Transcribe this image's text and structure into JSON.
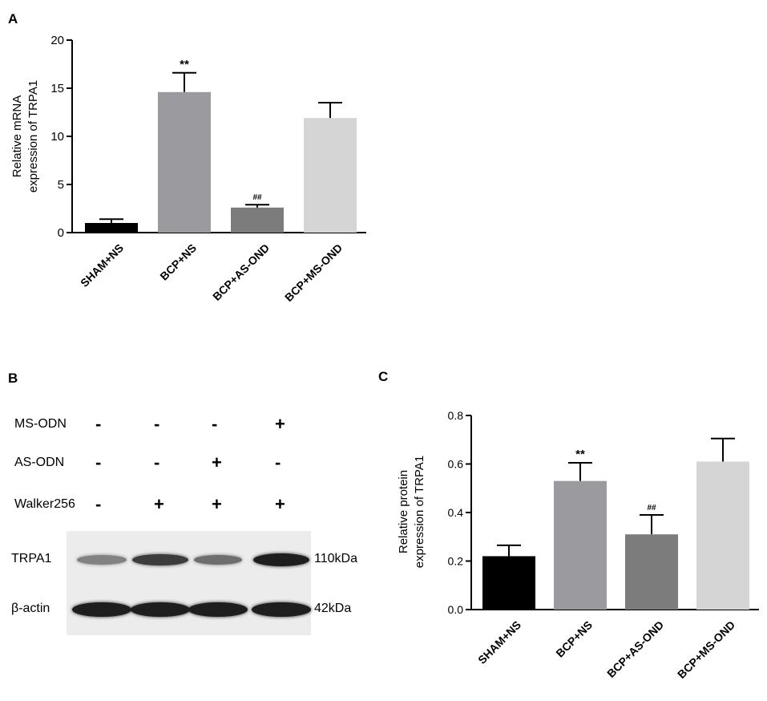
{
  "panels": {
    "a": "A",
    "b": "B",
    "c": "C"
  },
  "chart_data": [
    {
      "type": "bar",
      "panel": "A",
      "categories": [
        "SHAM+NS",
        "BCP+NS",
        "BCP+AS-OND",
        "BCP+MS-OND"
      ],
      "values": [
        1.0,
        14.6,
        2.6,
        11.9
      ],
      "errors": [
        0.4,
        2.0,
        0.3,
        1.6
      ],
      "annotations": [
        "",
        "**",
        "##",
        ""
      ],
      "colors": [
        "#000000",
        "#9b9b9f",
        "#7c7c7c",
        "#d5d5d5"
      ],
      "ylabel_lines": [
        "Relative mRNA",
        "expression of TRPA1"
      ],
      "yticks": [
        "0",
        "5",
        "10",
        "15",
        "20"
      ],
      "ylim": [
        0,
        20
      ]
    },
    {
      "type": "bar",
      "panel": "C",
      "categories": [
        "SHAM+NS",
        "BCP+NS",
        "BCP+AS-OND",
        "BCP+MS-OND"
      ],
      "values": [
        0.22,
        0.53,
        0.31,
        0.61
      ],
      "errors": [
        0.045,
        0.075,
        0.08,
        0.095
      ],
      "annotations": [
        "",
        "**",
        "##",
        ""
      ],
      "colors": [
        "#000000",
        "#9b9b9f",
        "#7c7c7c",
        "#d5d5d5"
      ],
      "ylabel_lines": [
        "Relative protein",
        "expression of TRPA1"
      ],
      "yticks": [
        "0.0",
        "0.2",
        "0.4",
        "0.6",
        "0.8"
      ],
      "ylim": [
        0,
        0.8
      ]
    }
  ],
  "blot": {
    "conditions": [
      {
        "label": "MS-ODN",
        "signs": [
          "-",
          "-",
          "-",
          "+"
        ]
      },
      {
        "label": "AS-ODN",
        "signs": [
          "-",
          "-",
          "+",
          "-"
        ]
      },
      {
        "label": "Walker256",
        "signs": [
          "-",
          "+",
          "+",
          "+"
        ]
      }
    ],
    "rows": [
      {
        "label": "TRPA1",
        "kda": "110kDa",
        "intensity": [
          0.45,
          0.8,
          0.55,
          0.95
        ]
      },
      {
        "label": "β-actin",
        "kda": "42kDa",
        "intensity": [
          0.95,
          0.95,
          0.95,
          0.95
        ]
      }
    ]
  }
}
